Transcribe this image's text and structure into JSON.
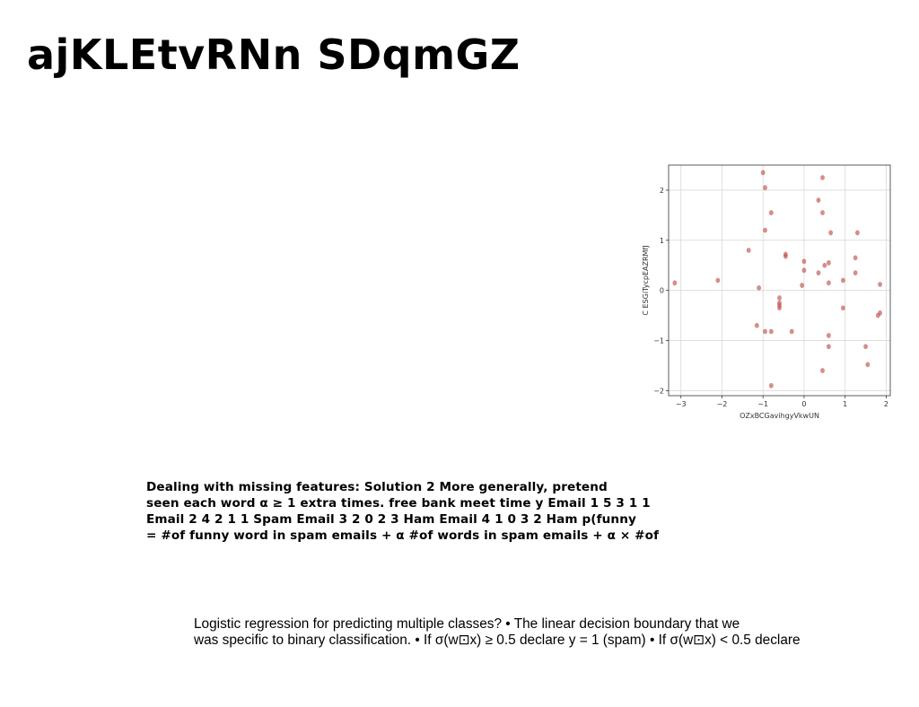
{
  "slide": {
    "title": "ajKLEtvRNn SDqmGZ",
    "bold_paragraph": {
      "lines": [
        "Dealing with missing features: Solution 2 More generally, pretend",
        "seen each word α ≥ 1 extra times. free bank meet time y Email 1 5 3 1 1",
        "Email 2 4 2 1 1 Spam Email 3 2 0 2 3 Ham Email 4 1 0 3 2 Ham p(funny",
        "= #of funny word in spam emails + α #of words in spam emails + α × #of"
      ]
    },
    "regular_paragraph": {
      "lines": [
        "Logistic regression for predicting multiple classes? • The linear decision boundary that we",
        "was specific to binary classification. • If σ(w⊡x) ≥ 0.5 declare y = 1 (spam) • If σ(w⊡x) < 0.5 declare"
      ]
    }
  },
  "chart_data": {
    "type": "scatter",
    "xlabel": "OZxBCGavihgyVkwUN",
    "ylabel": "C ESGiTycpEAZRMfJ",
    "xlim": [
      -3.3,
      2.1
    ],
    "ylim": [
      -2.1,
      2.5
    ],
    "xticks": [
      -3,
      -2,
      -1,
      0,
      1,
      2
    ],
    "yticks": [
      -2,
      -1,
      0,
      1,
      2
    ],
    "xtick_labels": [
      "−3",
      "−2",
      "−1",
      "0",
      "1",
      "2"
    ],
    "ytick_labels": [
      "−2",
      "−1",
      "0",
      "1",
      "2"
    ],
    "grid": true,
    "point_color": "#c0504d",
    "x": [
      -1.0,
      0.45,
      -0.95,
      0.35,
      -0.8,
      0.45,
      -0.95,
      0.65,
      1.3,
      -1.35,
      -0.45,
      -0.45,
      1.25,
      0.0,
      0.6,
      0.5,
      0.0,
      0.35,
      1.25,
      -3.15,
      -2.1,
      0.95,
      0.6,
      1.85,
      -0.05,
      -1.1,
      -0.6,
      -0.6,
      -0.6,
      -0.6,
      0.95,
      1.85,
      1.8,
      -1.15,
      -0.95,
      -0.8,
      -0.3,
      0.6,
      0.6,
      1.5,
      1.55,
      0.45,
      -0.8
    ],
    "y": [
      2.35,
      2.25,
      2.05,
      1.8,
      1.55,
      1.55,
      1.2,
      1.15,
      1.15,
      0.8,
      0.72,
      0.68,
      0.65,
      0.58,
      0.55,
      0.5,
      0.4,
      0.35,
      0.35,
      0.15,
      0.2,
      0.2,
      0.15,
      0.12,
      0.1,
      0.05,
      -0.15,
      -0.25,
      -0.3,
      -0.35,
      -0.35,
      -0.45,
      -0.5,
      -0.7,
      -0.82,
      -0.82,
      -0.82,
      -0.9,
      -1.12,
      -1.12,
      -1.48,
      -1.6,
      -1.9
    ]
  }
}
